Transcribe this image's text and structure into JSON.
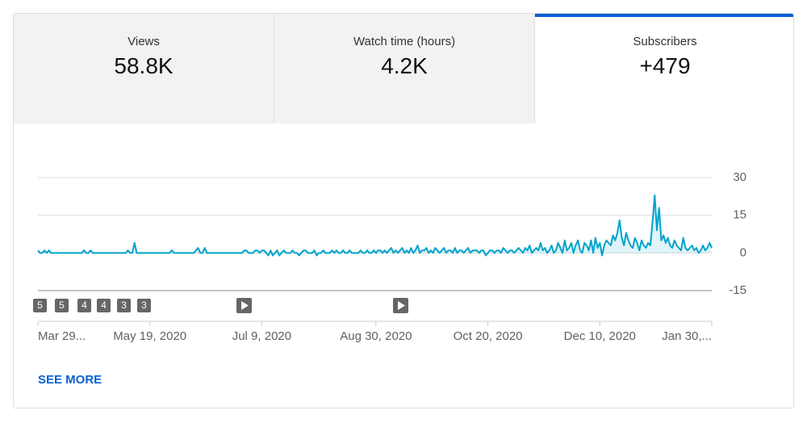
{
  "tabs": [
    {
      "label": "Views",
      "value": "58.8K"
    },
    {
      "label": "Watch time (hours)",
      "value": "4.2K"
    },
    {
      "label": "Subscribers",
      "value": "+479"
    }
  ],
  "chart_data": {
    "type": "line",
    "color": "#00a3cc",
    "area": true,
    "values": [
      1,
      0,
      0,
      1,
      0,
      1,
      0,
      0,
      0,
      0,
      0,
      0,
      0,
      0,
      0,
      0,
      0,
      0,
      0,
      0,
      0,
      1,
      0,
      0,
      1,
      0,
      0,
      0,
      0,
      0,
      0,
      0,
      0,
      0,
      0,
      0,
      0,
      0,
      0,
      0,
      0,
      1,
      0,
      0,
      4,
      0,
      0,
      0,
      0,
      0,
      0,
      0,
      0,
      0,
      0,
      0,
      0,
      0,
      0,
      0,
      0,
      1,
      0,
      0,
      0,
      0,
      0,
      0,
      0,
      0,
      0,
      0,
      1,
      2,
      0,
      0,
      2,
      0,
      0,
      0,
      0,
      0,
      0,
      0,
      0,
      0,
      0,
      0,
      0,
      0,
      0,
      0,
      0,
      0,
      1,
      1,
      0,
      0,
      0,
      1,
      1,
      0,
      1,
      1,
      0,
      -1,
      1,
      -1,
      0,
      1,
      -1,
      0,
      1,
      0,
      0,
      0,
      1,
      0,
      0,
      -1,
      0,
      1,
      1,
      0,
      0,
      0,
      1,
      -1,
      0,
      0,
      1,
      0,
      0,
      0,
      1,
      0,
      1,
      0,
      0,
      1,
      0,
      0,
      1,
      0,
      0,
      0,
      0,
      1,
      0,
      0,
      1,
      0,
      0,
      1,
      0,
      1,
      1,
      0,
      1,
      0,
      1,
      2,
      0,
      1,
      0,
      1,
      2,
      0,
      1,
      0,
      2,
      0,
      1,
      3,
      0,
      1,
      1,
      2,
      0,
      1,
      0,
      2,
      1,
      0,
      1,
      2,
      0,
      1,
      1,
      0,
      2,
      0,
      1,
      1,
      0,
      1,
      2,
      0,
      1,
      1,
      1,
      0,
      1,
      1,
      -1,
      0,
      1,
      1,
      0,
      1,
      1,
      0,
      2,
      1,
      0,
      1,
      1,
      0,
      1,
      2,
      1,
      0,
      2,
      1,
      3,
      0,
      1,
      2,
      1,
      4,
      1,
      2,
      0,
      1,
      3,
      0,
      1,
      4,
      2,
      0,
      5,
      1,
      2,
      4,
      0,
      3,
      5,
      1,
      0,
      4,
      3,
      1,
      5,
      0,
      6,
      2,
      4,
      -1,
      3,
      5,
      4,
      3,
      7,
      5,
      8,
      13,
      6,
      3,
      8,
      5,
      3,
      2,
      6,
      4,
      1,
      5,
      3,
      2,
      4,
      3,
      12,
      23,
      9,
      18,
      5,
      7,
      4,
      6,
      3,
      2,
      5,
      3,
      2,
      1,
      6,
      2,
      1,
      2,
      3,
      1,
      2,
      0,
      1,
      3,
      1,
      2,
      4,
      2
    ],
    "xlim": [
      0,
      307
    ],
    "xticks": [
      {
        "value": 0,
        "label": "Mar 29..."
      },
      {
        "value": 51,
        "label": "May 19, 2020"
      },
      {
        "value": 102,
        "label": "Jul 9, 2020"
      },
      {
        "value": 154,
        "label": "Aug 30, 2020"
      },
      {
        "value": 205,
        "label": "Oct 20, 2020"
      },
      {
        "value": 256,
        "label": "Dec 10, 2020"
      },
      {
        "value": 307,
        "label": "Jan 30,..."
      }
    ],
    "ylim": [
      -15,
      30
    ],
    "yticks": [
      30,
      15,
      0,
      -15
    ],
    "grid": true,
    "markers": [
      "5",
      "5",
      "4",
      "4",
      "3",
      "3"
    ]
  },
  "see_more": "SEE MORE"
}
